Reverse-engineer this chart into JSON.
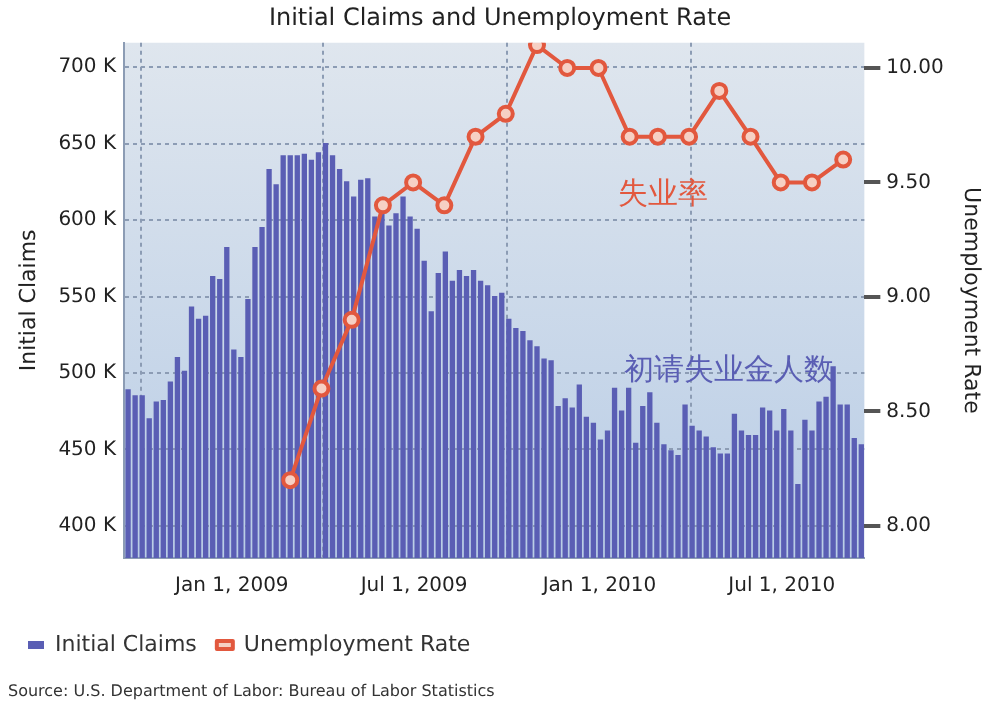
{
  "chart_data": {
    "type": "bar",
    "title": "Initial Claims and Unemployment Rate",
    "ylabel": "Initial Claims",
    "y2label": "Unemployment Rate",
    "xlim": [
      "2008-09-16",
      "2010-09-21"
    ],
    "xticks": [
      {
        "value": "2009-01-01",
        "label": "Jan 1, 2009"
      },
      {
        "value": "2009-07-01",
        "label": "Jul 1, 2009"
      },
      {
        "value": "2010-01-01",
        "label": "Jan 1, 2010"
      },
      {
        "value": "2010-07-01",
        "label": "Jul 1, 2010"
      }
    ],
    "ylim": [
      379,
      716
    ],
    "yticks": [
      {
        "value": 400,
        "label": "400 K"
      },
      {
        "value": 450,
        "label": "450 K"
      },
      {
        "value": 500,
        "label": "500 K"
      },
      {
        "value": 550,
        "label": "550 K"
      },
      {
        "value": 600,
        "label": "600 K"
      },
      {
        "value": 650,
        "label": "650 K"
      },
      {
        "value": 700,
        "label": "700 K"
      }
    ],
    "y2lim": [
      7.86,
      10.11
    ],
    "y2ticks": [
      {
        "value": 8,
        "label": "8.00"
      },
      {
        "value": 8.5,
        "label": "8.50"
      },
      {
        "value": 9,
        "label": "9.00"
      },
      {
        "value": 9.5,
        "label": "9.50"
      },
      {
        "value": 10,
        "label": "10.00"
      }
    ],
    "grid": true,
    "legend": "bottom",
    "marker": "circle",
    "line_style": "solid",
    "series": [
      {
        "name": "Initial Claims",
        "color": "#5a5eb4",
        "x": [
          "2008-09-20",
          "2008-09-27",
          "2008-10-04",
          "2008-10-11",
          "2008-10-18",
          "2008-10-25",
          "2008-11-01",
          "2008-11-08",
          "2008-11-15",
          "2008-11-22",
          "2008-11-29",
          "2008-12-06",
          "2008-12-13",
          "2008-12-20",
          "2008-12-27",
          "2009-01-03",
          "2009-01-10",
          "2009-01-17",
          "2009-01-24",
          "2009-01-31",
          "2009-02-07",
          "2009-02-14",
          "2009-02-21",
          "2009-02-28",
          "2009-03-07",
          "2009-03-14",
          "2009-03-21",
          "2009-03-28",
          "2009-04-04",
          "2009-04-11",
          "2009-04-18",
          "2009-04-25",
          "2009-05-02",
          "2009-05-09",
          "2009-05-16",
          "2009-05-23",
          "2009-05-30",
          "2009-06-06",
          "2009-06-13",
          "2009-06-20",
          "2009-06-27",
          "2009-07-04",
          "2009-07-11",
          "2009-07-18",
          "2009-07-25",
          "2009-08-01",
          "2009-08-08",
          "2009-08-15",
          "2009-08-22",
          "2009-08-29",
          "2009-09-05",
          "2009-09-12",
          "2009-09-19",
          "2009-09-26",
          "2009-10-03",
          "2009-10-10",
          "2009-10-17",
          "2009-10-24",
          "2009-10-31",
          "2009-11-07",
          "2009-11-14",
          "2009-11-21",
          "2009-11-28",
          "2009-12-05",
          "2009-12-12",
          "2009-12-19",
          "2009-12-26",
          "2010-01-02",
          "2010-01-09",
          "2010-01-16",
          "2010-01-23",
          "2010-01-30",
          "2010-02-06",
          "2010-02-13",
          "2010-02-20",
          "2010-02-27",
          "2010-03-06",
          "2010-03-13",
          "2010-03-20",
          "2010-03-27",
          "2010-04-03",
          "2010-04-10",
          "2010-04-17",
          "2010-04-24",
          "2010-05-01",
          "2010-05-08",
          "2010-05-15",
          "2010-05-22",
          "2010-05-29",
          "2010-06-05",
          "2010-06-12",
          "2010-06-19",
          "2010-06-26",
          "2010-07-03",
          "2010-07-10",
          "2010-07-17",
          "2010-07-24",
          "2010-07-31",
          "2010-08-07",
          "2010-08-14",
          "2010-08-21",
          "2010-08-28",
          "2010-09-04",
          "2010-09-11",
          "2010-09-18"
        ],
        "values": [
          489,
          485,
          485,
          470,
          481,
          482,
          494,
          510,
          501,
          543,
          535,
          537,
          563,
          561,
          582,
          515,
          510,
          548,
          582,
          595,
          633,
          623,
          642,
          642,
          642,
          643,
          639,
          644,
          650,
          642,
          633,
          625,
          615,
          626,
          627,
          602,
          608,
          596,
          604,
          615,
          602,
          594,
          573,
          540,
          565,
          579,
          560,
          567,
          563,
          567,
          560,
          557,
          550,
          552,
          535,
          529,
          527,
          521,
          517,
          509,
          508,
          478,
          483,
          477,
          492,
          471,
          467,
          456,
          462,
          490,
          475,
          490,
          454,
          478,
          487,
          467,
          453,
          449,
          446,
          479,
          465,
          462,
          458,
          451,
          447,
          447,
          473,
          462,
          459,
          459,
          477,
          475,
          462,
          476,
          462,
          427,
          469,
          462,
          481,
          484,
          504,
          479,
          479,
          457,
          453
        ]
      },
      {
        "name": "Unemployment Rate",
        "type": "line",
        "axis": "y2",
        "color": "#e2583e",
        "x": [
          "2009-02-28",
          "2009-03-31",
          "2009-04-30",
          "2009-05-31",
          "2009-06-30",
          "2009-07-31",
          "2009-08-31",
          "2009-09-30",
          "2009-10-31",
          "2009-11-30",
          "2009-12-31",
          "2010-01-31",
          "2010-02-28",
          "2010-03-31",
          "2010-04-30",
          "2010-05-31",
          "2010-06-30",
          "2010-07-31",
          "2010-08-31"
        ],
        "values": [
          8.2,
          8.6,
          8.9,
          9.4,
          9.5,
          9.4,
          9.7,
          9.8,
          10.1,
          10.0,
          10.0,
          9.7,
          9.7,
          9.7,
          9.9,
          9.7,
          9.5,
          9.5,
          9.6
        ]
      }
    ],
    "annotations": [
      "失业率",
      "初请失业金人数",
      "Source: U.S. Department of Labor: Bureau of Labor Statistics"
    ]
  }
}
